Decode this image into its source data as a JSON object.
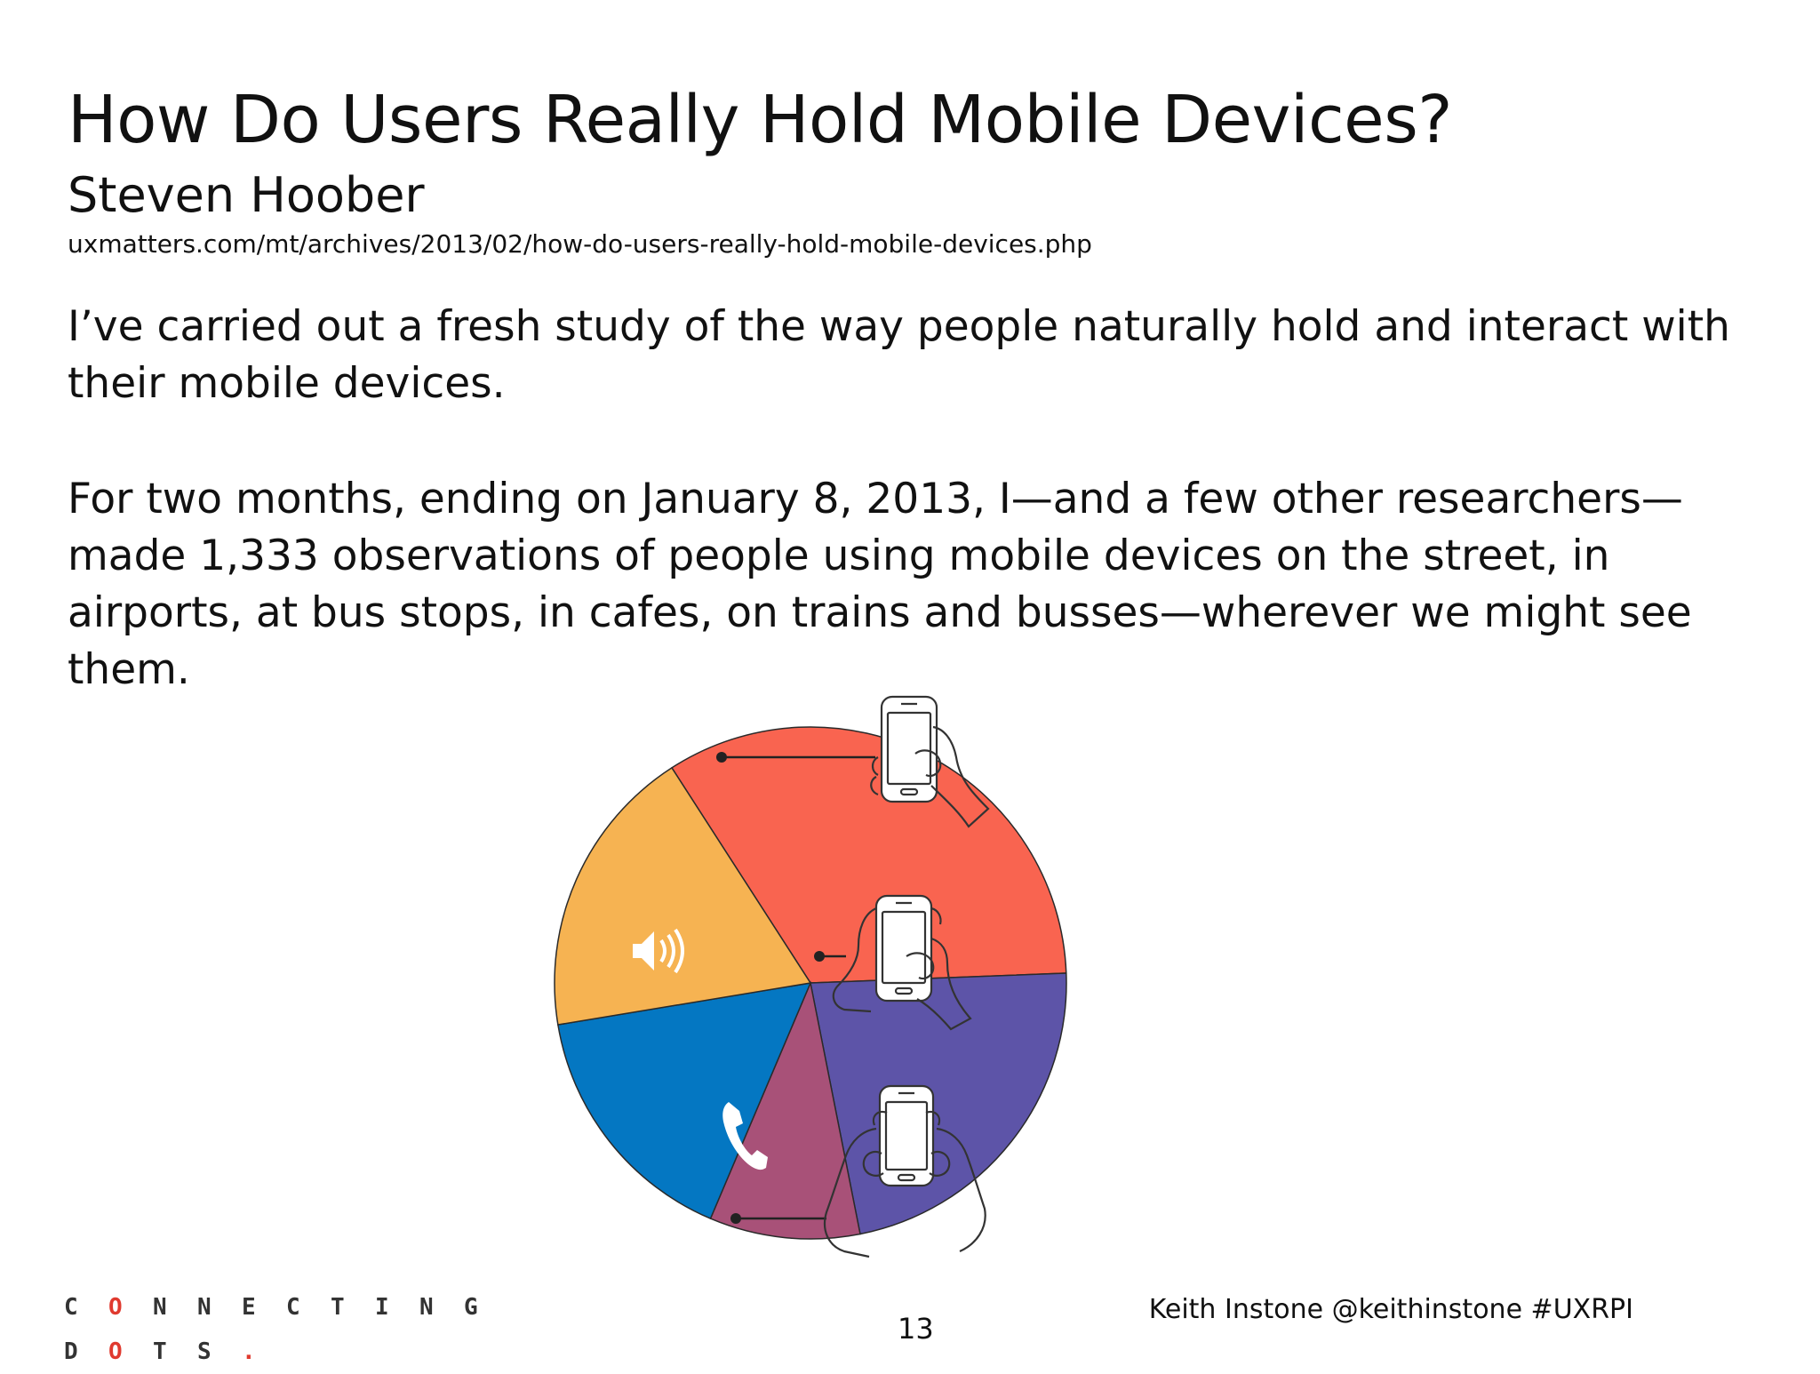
{
  "slide": {
    "title": "How Do Users Really Hold Mobile Devices?",
    "author": "Steven Hoober",
    "url": "uxmatters.com/mt/archives/2013/02/how-do-users-really-hold-mobile-devices.php",
    "paragraphs": [
      "I’ve carried out a fresh study of the way people naturally hold and interact with their mobile devices.",
      "For two months, ending on January 8, 2013, I—and a few other researchers—made 1,333 observations of people using mobile devices on the street, in airports, at bus stops, in cafes, on trains and busses—wherever we might see them."
    ]
  },
  "chart_data": {
    "type": "pie",
    "slices": [
      {
        "color": "#f96450",
        "percent": 33.5,
        "icon": ""
      },
      {
        "color": "#5d54a8",
        "percent": 22.5,
        "icon": ""
      },
      {
        "color": "#a85178",
        "percent": 9.5,
        "icon": ""
      },
      {
        "color": "#0477c2",
        "percent": 16,
        "icon": "phone-icon"
      },
      {
        "color": "#f6b352",
        "percent": 18.5,
        "icon": "speaker-icon"
      }
    ],
    "callouts": [
      {
        "grip": "one-handed",
        "icon": "one-hand-phone-icon"
      },
      {
        "grip": "cradled",
        "icon": "cradled-phone-icon"
      },
      {
        "grip": "two-handed",
        "icon": "two-hand-phone-icon"
      }
    ]
  },
  "footer": {
    "logo_rows": [
      [
        "C",
        "O",
        "N",
        "N",
        "E",
        "C",
        "T",
        "I",
        "N",
        "G"
      ],
      [
        "D",
        "O",
        "T",
        "S",
        "."
      ]
    ],
    "logo_accent_color": "#e03a2f",
    "page_number": "13",
    "credit": "Keith Instone  @keithinstone  #UXRPI"
  }
}
